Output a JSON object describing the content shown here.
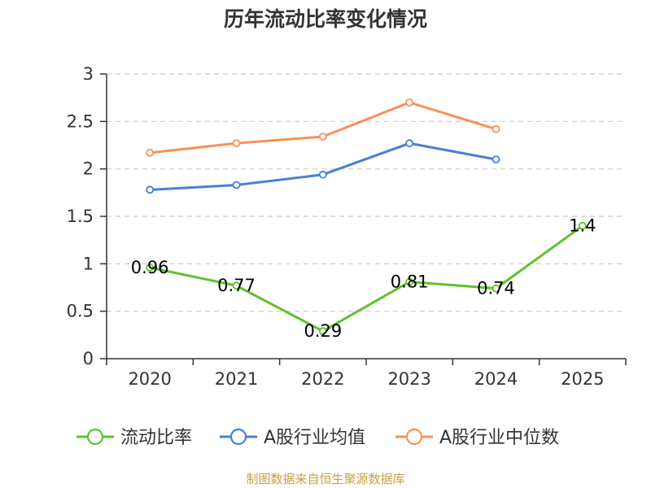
{
  "chart_data": {
    "type": "line",
    "title": "历年流动比率变化情况",
    "categories": [
      "2020",
      "2021",
      "2022",
      "2023",
      "2024",
      "2025"
    ],
    "yticks": [
      "0",
      "0.5",
      "1",
      "1.5",
      "2",
      "2.5",
      "3"
    ],
    "ylim": [
      0,
      3
    ],
    "grid": true,
    "series": [
      {
        "name": "流动比率",
        "color": "#5ec12e",
        "values": [
          0.96,
          0.77,
          0.29,
          0.81,
          0.74,
          1.4
        ],
        "labels": [
          "0.96",
          "0.77",
          "0.29",
          "0.81",
          "0.74",
          "1.4"
        ]
      },
      {
        "name": "A股行业均值",
        "color": "#4a7fd6",
        "values": [
          1.78,
          1.83,
          1.94,
          2.27,
          2.1,
          null
        ]
      },
      {
        "name": "A股行业中位数",
        "color": "#f99058",
        "values": [
          2.17,
          2.27,
          2.34,
          2.7,
          2.42,
          null
        ]
      }
    ],
    "legend_position": "bottom",
    "source": "制图数据来自恒生聚源数据库"
  }
}
